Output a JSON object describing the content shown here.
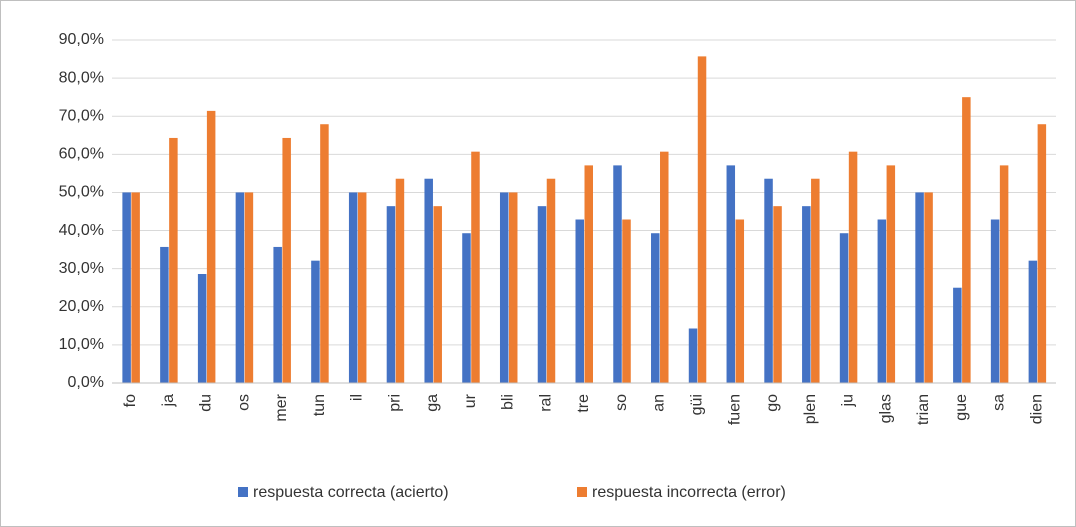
{
  "chart_data": {
    "type": "bar",
    "categories": [
      "fo",
      "ja",
      "du",
      "os",
      "mer",
      "tun",
      "il",
      "pri",
      "ga",
      "ur",
      "bli",
      "ral",
      "tre",
      "so",
      "an",
      "güi",
      "fuen",
      "go",
      "plen",
      "ju",
      "glas",
      "trian",
      "gue",
      "sa",
      "dien"
    ],
    "series": [
      {
        "name": "respuesta correcta (acierto)",
        "color": "#4472c4",
        "values": [
          50,
          35.7,
          28.6,
          50,
          35.7,
          32.1,
          50,
          46.4,
          53.6,
          39.3,
          50,
          46.4,
          42.9,
          57.1,
          39.3,
          14.3,
          57.1,
          53.6,
          46.4,
          39.3,
          42.9,
          50,
          25,
          42.9,
          32.1
        ]
      },
      {
        "name": "respuesta incorrecta (error)",
        "color": "#ed7d31",
        "values": [
          50,
          64.3,
          71.4,
          50,
          64.3,
          67.9,
          50,
          53.6,
          46.4,
          60.7,
          50,
          53.6,
          57.1,
          42.9,
          60.7,
          85.7,
          42.9,
          46.4,
          53.6,
          60.7,
          57.1,
          50,
          75,
          57.1,
          67.9
        ]
      }
    ],
    "ylim": [
      0,
      90
    ],
    "yticks": [
      {
        "value": 0,
        "label": "0,0%"
      },
      {
        "value": 10,
        "label": "10,0%"
      },
      {
        "value": 20,
        "label": "20,0%"
      },
      {
        "value": 30,
        "label": "30,0%"
      },
      {
        "value": 40,
        "label": "40,0%"
      },
      {
        "value": 50,
        "label": "50,0%"
      },
      {
        "value": 60,
        "label": "60,0%"
      },
      {
        "value": 70,
        "label": "70,0%"
      },
      {
        "value": 80,
        "label": "80,0%"
      },
      {
        "value": 90,
        "label": "90,0%"
      }
    ],
    "grid": true,
    "legend": "bottom"
  }
}
